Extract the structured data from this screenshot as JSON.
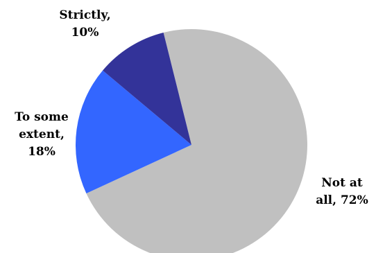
{
  "chart_data": {
    "type": "pie",
    "start_angle_deg": -14,
    "direction": "clockwise",
    "slices": [
      {
        "label": "Not at all",
        "value": 72,
        "color": "#c0c0c0",
        "label_lines": [
          "Not at",
          "all, 72%"
        ]
      },
      {
        "label": "To some extent",
        "value": 18,
        "color": "#3366ff",
        "label_lines": [
          "To some",
          "extent,",
          "18%"
        ]
      },
      {
        "label": "Strictly",
        "value": 10,
        "color": "#333399",
        "label_lines": [
          "Strictly,",
          "10%"
        ]
      }
    ]
  }
}
